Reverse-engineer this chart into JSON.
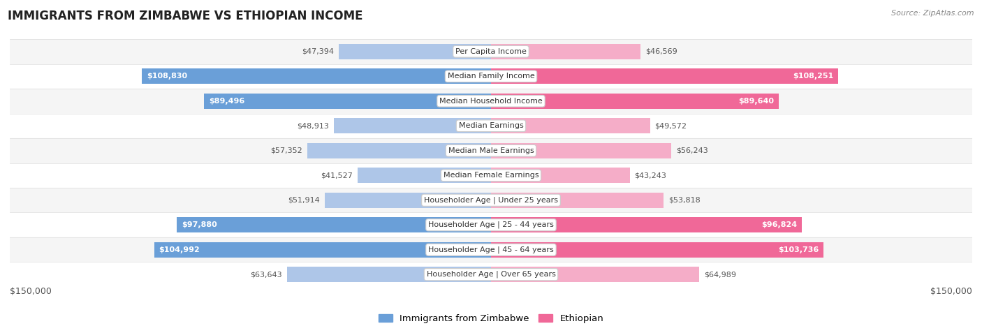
{
  "title": "IMMIGRANTS FROM ZIMBABWE VS ETHIOPIAN INCOME",
  "source": "Source: ZipAtlas.com",
  "categories": [
    "Per Capita Income",
    "Median Family Income",
    "Median Household Income",
    "Median Earnings",
    "Median Male Earnings",
    "Median Female Earnings",
    "Householder Age | Under 25 years",
    "Householder Age | 25 - 44 years",
    "Householder Age | 45 - 64 years",
    "Householder Age | Over 65 years"
  ],
  "zimbabwe_values": [
    47394,
    108830,
    89496,
    48913,
    57352,
    41527,
    51914,
    97880,
    104992,
    63643
  ],
  "ethiopian_values": [
    46569,
    108251,
    89640,
    49572,
    56243,
    43243,
    53818,
    96824,
    103736,
    64989
  ],
  "zimbabwe_labels": [
    "$47,394",
    "$108,830",
    "$89,496",
    "$48,913",
    "$57,352",
    "$41,527",
    "$51,914",
    "$97,880",
    "$104,992",
    "$63,643"
  ],
  "ethiopian_labels": [
    "$46,569",
    "$108,251",
    "$89,640",
    "$49,572",
    "$56,243",
    "$43,243",
    "$53,818",
    "$96,824",
    "$103,736",
    "$64,989"
  ],
  "zimbabwe_color_light": "#aec6e8",
  "zimbabwe_color_dark": "#6a9fd8",
  "ethiopian_color_light": "#f5adc8",
  "ethiopian_color_dark": "#f06898",
  "threshold_for_inside_label": 70000,
  "max_value": 150000,
  "legend_zimbabwe": "Immigrants from Zimbabwe",
  "legend_ethiopian": "Ethiopian",
  "axis_label_left": "$150,000",
  "axis_label_right": "$150,000",
  "background_color": "#ffffff",
  "row_bg_even": "#f5f5f5",
  "row_bg_odd": "#ffffff"
}
